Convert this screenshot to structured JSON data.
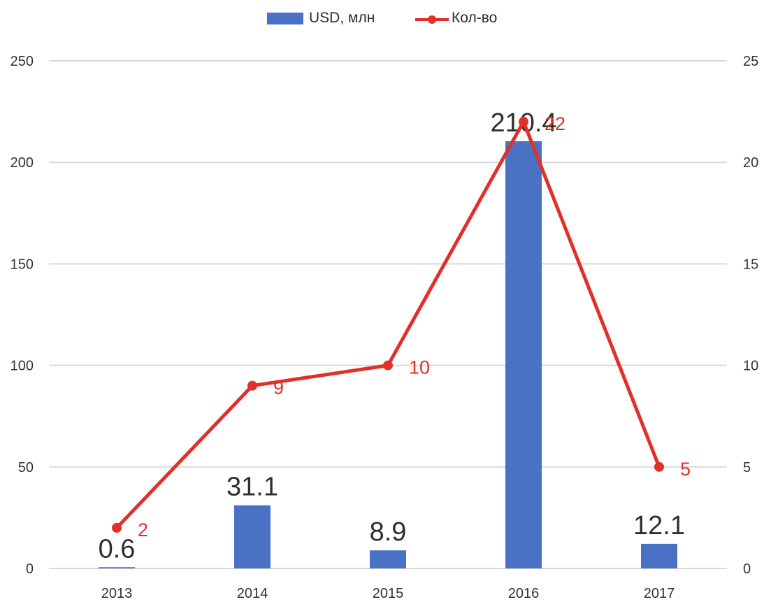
{
  "chart_data": {
    "type": "bar+line",
    "categories": [
      "2013",
      "2014",
      "2015",
      "2016",
      "2017"
    ],
    "series": [
      {
        "name": "USD, млн",
        "type": "bar",
        "axis": "left",
        "values": [
          0.6,
          31.1,
          8.9,
          210.4,
          12.1
        ],
        "labels": [
          "0.6",
          "31.1",
          "8.9",
          "210.4",
          "12.1"
        ]
      },
      {
        "name": "Кол-во",
        "type": "line",
        "axis": "right",
        "values": [
          2,
          9,
          10,
          22,
          5
        ],
        "labels": [
          "2",
          "9",
          "10",
          "22",
          "5"
        ]
      }
    ],
    "y_left": {
      "min": 0,
      "max": 250,
      "ticks": [
        "0",
        "50",
        "100",
        "150",
        "200",
        "250"
      ]
    },
    "y_right": {
      "min": 0,
      "max": 25,
      "ticks": [
        "0",
        "5",
        "10",
        "15",
        "20",
        "25"
      ]
    },
    "grid": true,
    "legend_position": "top",
    "colors": {
      "bar": "#4a72c4",
      "line": "#e0302a",
      "grid": "#d9d9d9"
    }
  }
}
